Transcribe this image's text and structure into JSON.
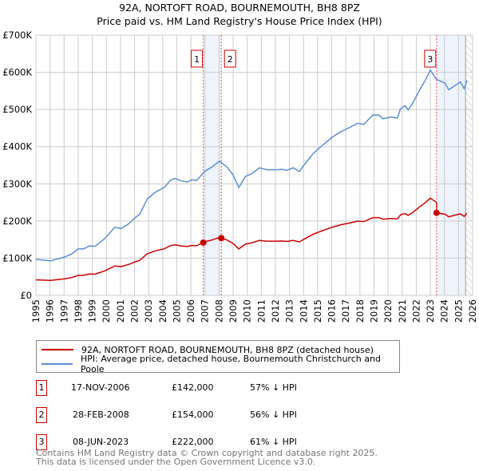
{
  "chart_data": {
    "type": "line",
    "title": "92A, NORTOFT ROAD, BOURNEMOUTH, BH8 8PZ",
    "subtitle": "Price paid vs. HM Land Registry's House Price Index (HPI)",
    "xlim": [
      1995,
      2026
    ],
    "ylim": [
      0,
      700000
    ],
    "grid": true,
    "x_ticks": [
      "1995",
      "1996",
      "1997",
      "1998",
      "1999",
      "2000",
      "2001",
      "2002",
      "2003",
      "2004",
      "2005",
      "2006",
      "2007",
      "2008",
      "2009",
      "2010",
      "2011",
      "2012",
      "2013",
      "2014",
      "2015",
      "2016",
      "2017",
      "2018",
      "2019",
      "2020",
      "2021",
      "2022",
      "2023",
      "2024",
      "2025",
      "2026"
    ],
    "y_ticks": [
      {
        "v": 0,
        "label": "£0"
      },
      {
        "v": 100000,
        "label": "£100K"
      },
      {
        "v": 200000,
        "label": "£200K"
      },
      {
        "v": 300000,
        "label": "£300K"
      },
      {
        "v": 400000,
        "label": "£400K"
      },
      {
        "v": 500000,
        "label": "£500K"
      },
      {
        "v": 600000,
        "label": "£600K"
      },
      {
        "v": 700000,
        "label": "£700K"
      }
    ],
    "series": [
      {
        "name": "HPI: Average price, detached house, Bournemouth Christchurch and Poole",
        "color": "#5b8fd4",
        "points": [
          [
            1995.0,
            97
          ],
          [
            1996.05,
            93
          ],
          [
            1997.03,
            103
          ],
          [
            1997.57,
            112
          ],
          [
            1998.0,
            125
          ],
          [
            1998.4,
            125
          ],
          [
            1998.77,
            133
          ],
          [
            1999.2,
            132
          ],
          [
            1999.86,
            152
          ],
          [
            2000.6,
            183
          ],
          [
            2001.06,
            180
          ],
          [
            2001.6,
            193
          ],
          [
            2002.04,
            209
          ],
          [
            2002.36,
            218
          ],
          [
            2002.9,
            259
          ],
          [
            2003.45,
            277
          ],
          [
            2004.1,
            290
          ],
          [
            2004.54,
            309
          ],
          [
            2004.87,
            315
          ],
          [
            2005.3,
            308
          ],
          [
            2005.74,
            305
          ],
          [
            2006.07,
            311
          ],
          [
            2006.4,
            309
          ],
          [
            2007.0,
            334
          ],
          [
            2007.48,
            345
          ],
          [
            2008.03,
            361
          ],
          [
            2008.57,
            345
          ],
          [
            2009.0,
            324
          ],
          [
            2009.4,
            290
          ],
          [
            2009.88,
            320
          ],
          [
            2010.3,
            327
          ],
          [
            2010.86,
            343
          ],
          [
            2011.4,
            338
          ],
          [
            2012.06,
            338
          ],
          [
            2012.5,
            339
          ],
          [
            2012.8,
            336
          ],
          [
            2013.26,
            343
          ],
          [
            2013.7,
            333
          ],
          [
            2014.0,
            349
          ],
          [
            2014.67,
            381
          ],
          [
            2015.2,
            399
          ],
          [
            2015.98,
            424
          ],
          [
            2016.63,
            440
          ],
          [
            2017.29,
            452
          ],
          [
            2017.83,
            463
          ],
          [
            2018.27,
            460
          ],
          [
            2018.92,
            485
          ],
          [
            2019.36,
            485
          ],
          [
            2019.64,
            475
          ],
          [
            2020.23,
            480
          ],
          [
            2020.66,
            477
          ],
          [
            2020.88,
            502
          ],
          [
            2021.2,
            510
          ],
          [
            2021.43,
            499
          ],
          [
            2021.75,
            517
          ],
          [
            2022.25,
            553
          ],
          [
            2022.63,
            578
          ],
          [
            2023.0,
            606
          ],
          [
            2023.43,
            581
          ],
          [
            2024.04,
            571
          ],
          [
            2024.3,
            553
          ],
          [
            2024.7,
            563
          ],
          [
            2025.13,
            574
          ],
          [
            2025.4,
            556
          ],
          [
            2025.6,
            578
          ]
        ]
      },
      {
        "name": "92A, NORTOFT ROAD, BOURNEMOUTH, BH8 8PZ (detached house)",
        "color": "#cc0000",
        "derived_from": "HPI indexed to sales"
      }
    ],
    "sales": [
      {
        "id": "1",
        "date": "17-NOV-2006",
        "year": 2006.88,
        "price": 142000,
        "price_label": "£142,000",
        "hpi_diff": "57% ↓ HPI"
      },
      {
        "id": "2",
        "date": "28-FEB-2008",
        "year": 2008.16,
        "price": 154000,
        "price_label": "£154,000",
        "hpi_diff": "56% ↓ HPI"
      },
      {
        "id": "3",
        "date": "08-JUN-2023",
        "year": 2023.44,
        "price": 222000,
        "price_label": "£222,000",
        "hpi_diff": "61% ↓ HPI"
      }
    ],
    "shaded": [
      [
        2006.88,
        2008.16
      ],
      [
        2023.44,
        2025.5
      ]
    ],
    "forecast_from": 2025.5,
    "legend": [
      "92A, NORTOFT ROAD, BOURNEMOUTH, BH8 8PZ (detached house)",
      "HPI: Average price, detached house, Bournemouth Christchurch and Poole"
    ]
  },
  "footer": [
    "Contains HM Land Registry data © Crown copyright and database right 2025.",
    "This data is licensed under the Open Government Licence v3.0."
  ],
  "colors": {
    "red": "#cc0000",
    "blue": "#5b8fd4"
  }
}
